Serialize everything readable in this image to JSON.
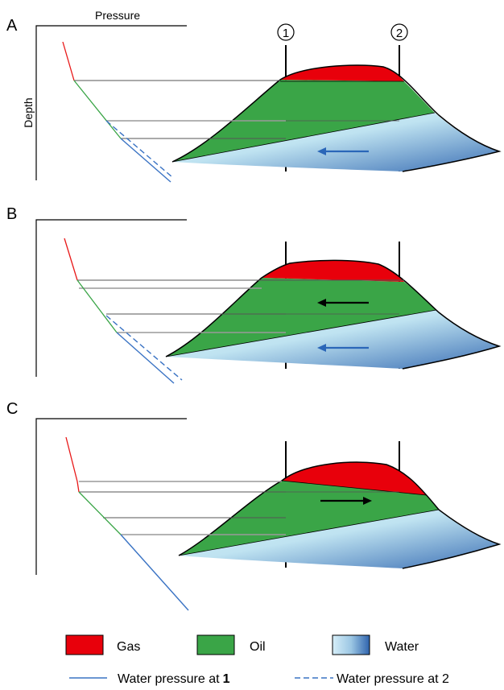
{
  "panels": [
    {
      "label": "A",
      "axis_x_label": "Pressure",
      "axis_y_label": "Depth"
    },
    {
      "label": "B"
    },
    {
      "label": "C"
    }
  ],
  "wells": [
    {
      "label": "1"
    },
    {
      "label": "2"
    }
  ],
  "legend": {
    "gas": "Gas",
    "oil": "Oil",
    "water": "Water",
    "water_pressure_1": "Water pressure at",
    "water_pressure_1_num": "1",
    "water_pressure_2": "Water pressure at 2"
  },
  "colors": {
    "gas": "#e8000b",
    "oil": "#3aa547",
    "water_light": "#bfe3f1",
    "water_dark": "#3a6eb4",
    "gas_line": "#e81818",
    "oil_line": "#3aa547",
    "water_line": "#3a73c4",
    "arrow_blue": "#2a66b8",
    "arrow_black": "#000000"
  }
}
